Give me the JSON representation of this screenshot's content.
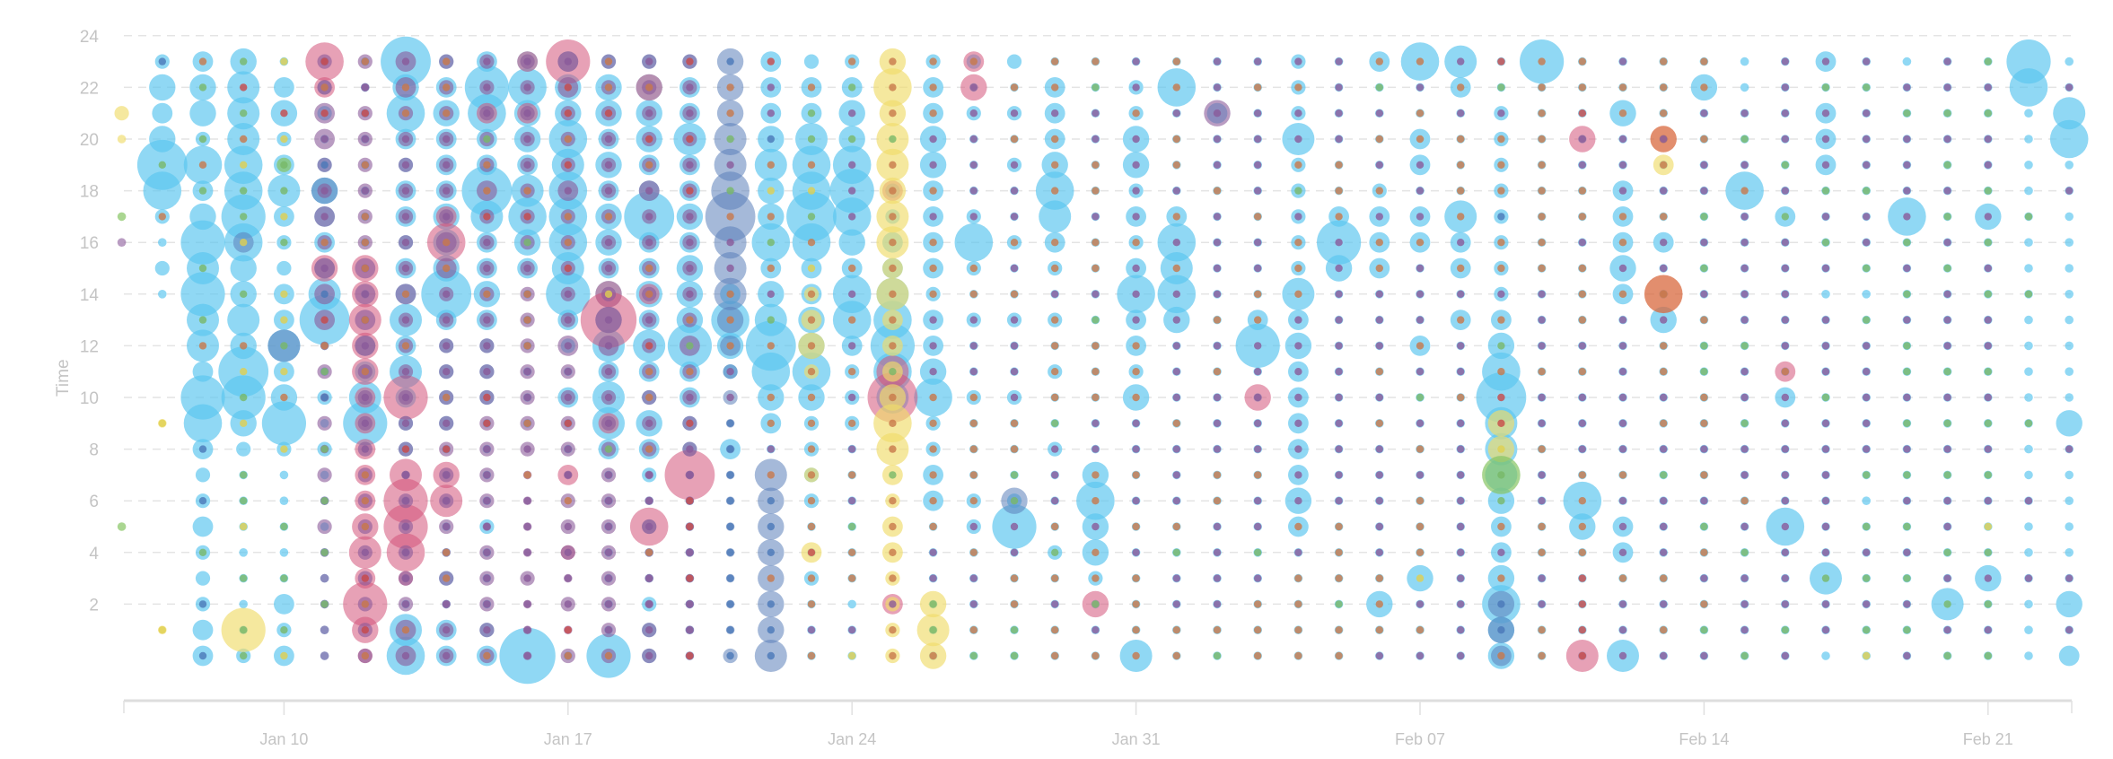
{
  "chart_data": {
    "type": "scatter",
    "subtype": "bubble",
    "ylabel": "Time",
    "xlabel": "",
    "ylim": [
      -1,
      24
    ],
    "y_ticks": [
      2,
      4,
      6,
      8,
      10,
      12,
      14,
      16,
      18,
      20,
      22,
      24
    ],
    "grid": "horizontal dashed",
    "day_count": 49,
    "x_ticks": [
      {
        "label": "Jan 10",
        "day": 4
      },
      {
        "label": "Jan 17",
        "day": 11
      },
      {
        "label": "Jan 24",
        "day": 18
      },
      {
        "label": "Jan 31",
        "day": 25
      },
      {
        "label": "Feb 07",
        "day": 32
      },
      {
        "label": "Feb 14",
        "day": 39
      },
      {
        "label": "Feb 21",
        "day": 46
      }
    ],
    "encoding_note": "each sizes string = bubble size level (0 = none, 1-9) for hours 0..23 of that day",
    "series": [
      {
        "name": "blue",
        "color": "#5cc6ef",
        "opacity": 0.68,
        "sizes": {
          "0": "000000000000000000000000",
          "1": "000000000000001212684342",
          "2": "332223223673557574362443",
          "3": "211111112478454467665554",
          "4": "323111112743533223532431",
          "5": "111111112121185333421221",
          "6": "000000000753311111111111",
          "7": "651111112235353323323648",
          "8": "331211111222238444333432",
          "9": "321112111122234335833673",
          "10": "900000000111111346534463",
          "11": "100000001131237566656443",
          "12": "711111113553544344343442",
          "13": "222112123423534338334442",
          "14": "111111112233744434335332",
          "15": "000000003002463000000000",
          "16": "000000001346854364454333",
          "17": "111211222246443368665332",
          "18": "111111111222366346764432",
          "19": "000000000056765332200000",
          "20": "111111332264332333344332",
          "21": "111112211121121262111212",
          "22": "111117211121121121121212",
          "23": "111121112112121235643331",
          "24": "111244641111111111111111",
          "25": "511111111142336323244221",
          "26": "111111111111146563111161",
          "27": "111111111111111111111311",
          "28": "111111111111731111111111",
          "29": "111113433333435222225222",
          "30": "111111111111111473111111",
          "31": "114111111111111333211113",
          "32": "111411111111311133133116",
          "33": "111111111111131335111135",
          "34": "446433455586432222222211",
          "35": "111111111111111111111117",
          "36": "111114611111111111111111",
          "37": "511133111111113433311411",
          "38": "111111111111141131111111",
          "39": "111111111111111111111141",
          "40": "111111111111111111611111",
          "41": "111116111131111113111111",
          "42": "111511111111111111133313",
          "43": "111111111111111111111111",
          "44": "111111111111111116111111",
          "45": "115111111111111111111111",
          "46": "111411111111111114111111",
          "47": "111111111111111111111167",
          "48": "314111111411111111116511"
        }
      },
      {
        "name": "navy",
        "color": "#5b7fb9",
        "opacity": 0.55,
        "sizes": {
          "3": "000000000000000030000000",
          "4": "000000000000500000000000",
          "5": "000000000000000000400000",
          "15": "211111111122345558655444",
          "16": "544444450000000000000000",
          "22": "000000400000000000000000",
          "34": "344000000000000000000000"
        }
      },
      {
        "name": "pink",
        "color": "#d4537a",
        "opacity": 0.55,
        "sizes": {
          "5": "000000000000000400000036",
          "6": "247354333334454400000000",
          "7": "000267750070000000000000",
          "8": "000000540000000063000000",
          "9": "000000000000000000000300",
          "10": "000000000000000000000303",
          "11": "000020030000000000000007",
          "12": "000000000300094000000000",
          "13": "000006000000003000000040",
          "14": "000000080000000000000000",
          "19": "003000000085000000300000",
          "21": "000000000000000000000043",
          "24": "004000000000000000000000",
          "28": "000000000040000000000000",
          "36": "500000000000000000004000",
          "41": "000000000003000000000000"
        }
      },
      {
        "name": "yellow",
        "color": "#f0dc6a",
        "opacity": 0.65,
        "sizes": {
          "0": "000000000000000000001200",
          "1": "010000000100000000000000",
          "3": "070000000000000000000000",
          "17": "000030020002432000000000",
          "19": "222233235643335355455464",
          "20": "454000000000000000000000",
          "34": "000000004400000000000000",
          "38": "000000000000000000030000"
        }
      },
      {
        "name": "green",
        "color": "#86c462",
        "opacity": 0.7,
        "sizes": {
          "0": "000001000000000001000000",
          "4": "000000000000000000020000",
          "34": "000000060000000000000000"
        }
      },
      {
        "name": "orange",
        "color": "#d8683e",
        "opacity": 0.75,
        "sizes": {
          "38": "000000000000006000004000"
        }
      },
      {
        "name": "purple",
        "color": "#8a5a9a",
        "opacity": 0.6,
        "sizes": {
          "0": "000000000000000010000000",
          "5": "111112121212133323223322",
          "6": "222222222222333322222212",
          "7": "332222212222223222222233",
          "8": "221212222222222332222222",
          "9": "222221222222222222322222",
          "10": "111211112222222222222222",
          "11": "212122212222322222322233",
          "12": "222222222222342222222222",
          "13": "221112112222222222322222",
          "14": "111111112222322222222222",
          "27": "000000000000000000000400"
        }
      }
    ],
    "accent_dots": {
      "colors": {
        "p": "#8a5a9a",
        "o": "#c8784a",
        "g": "#78b868",
        "r": "#c84848",
        "y": "#e0d050",
        "n": "#4a78b8"
      },
      "by_day": [
        "........................",
        ".y.......y.......o.g...n",
        "n.n.g.n.n...og.g..gog.go",
        "gg.g.ygg.ygyo.g.yggyogrg",
        "yg.g.g..y.oygyy.gyggyr.y",
        "..g.g.g.g.ngornpoppnpror",
        "ororpooopppopopooopoprpo",
        "popppppprpppopoppppppoopp",
        "pppooppprpoppppooppppooo",
        "opppppppprrpppopproogpppo",
        "pppppppopoppooopgroppppp",
        "orppppopprppppprooprorrp",
        "opppppppgpppppyppoppproo",
        "ppppopppopoorpooppporpopp",
        "rpprprrpprpogopppprprppr",
        "nnnnnnnnnnppoooppogpgoon",
        "nnnonnnopoo.ogpogoyonppr",
        "opoorooooooooooyogyoggo..",
        "yp.oogpopopopopo.pppgpgo",
        "oopoooogooogoooooooogooo",
        "oggppoooooopppooopoppooo",
        "goppopooooopppoo.ppppppo",
        "ggooppggooppppopopppopo",
        "oopogopppgoooopoo.ooopoo",
        "opgoopooppooogpoopooppgo",
        "oooopopoppooopppoppppopp",
        "ooppgopppopppppopopoopoo",
        "goppppoopppopoppppopppppp",
        "ooopgppopppppooppoppppopo",
        "oooopoppppppppooopgoppopo",
        "oogooopppppppppppoooppppp",
        "pooopppppopopppoopopopgop",
        "popyooopopgpopppopppoopop",
        "ppppppppppoppopopoooopopop",
        "onnopoggyrrogopoonooopgr",
        "ooppooppoppopppoooooooooo",
        "rrrroooopppopooopoopproor",
        "pppopppoppppppopoopppoop",
        "popopppgpopoopoppopopooo",
        "pgopogpopooggopgpgppopoo",
        "gpppgpoppgppgpppppopgp..",
        "pgpppppppppopppppgpgpppp",
        ".ppgppppppgppp.pgpgpppgp",
        "ygpgpg.gpppppg.gppgpppgp",
        "pgpgpgpgpgpggpgpgppppgp.",
        "gpgpgppgpgpgpppgpgpgpgpp",
        "gpgpgypgpgpgppgpgpgppgpg",
        "...p..p..g....g..g......",
        ".p.p....p.........p...p."
      ]
    }
  }
}
